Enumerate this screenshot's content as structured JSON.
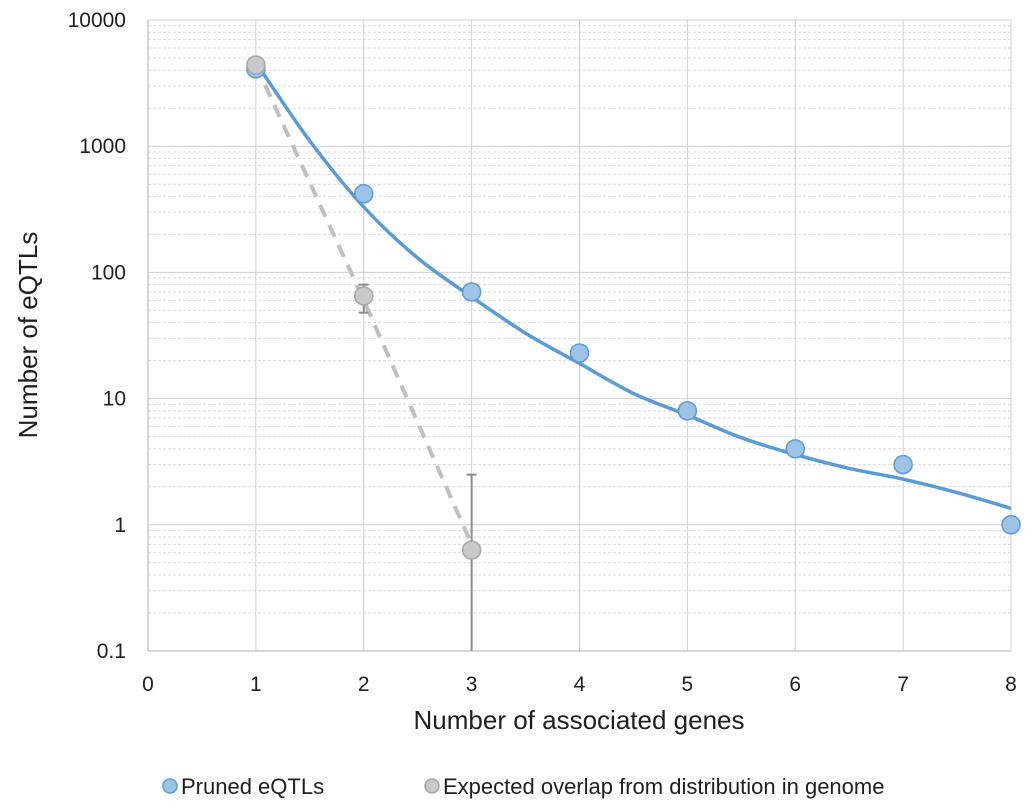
{
  "chart_data": {
    "type": "scatter",
    "xlabel": "Number of associated genes",
    "ylabel": "Number of eQTLs",
    "xlim": [
      0,
      8
    ],
    "ylim": [
      0.1,
      10000
    ],
    "yscale": "log",
    "x_ticks": [
      "0",
      "1",
      "2",
      "3",
      "4",
      "5",
      "6",
      "7",
      "8"
    ],
    "y_ticks": [
      "0.1",
      "1",
      "10",
      "100",
      "1000",
      "10000"
    ],
    "grid": "major and minor horizontal, major vertical",
    "legend_position": "bottom",
    "series": [
      {
        "name": "Pruned eQTLs",
        "color": "#5b9bd5",
        "marker_fill": "#9dc3e6",
        "x": [
          1,
          2,
          3,
          4,
          5,
          6,
          7,
          8
        ],
        "y": [
          4100,
          420,
          70,
          23,
          8,
          4,
          3,
          1
        ],
        "trendline": {
          "style": "solid",
          "color": "#5b9bd5",
          "x": [
            1,
            1.5,
            2,
            2.5,
            3,
            3.5,
            4,
            4.5,
            5,
            5.5,
            6,
            6.5,
            7,
            7.5,
            8
          ],
          "y": [
            4600,
            1100,
            330,
            130,
            64,
            33,
            19,
            11,
            7.4,
            4.9,
            3.6,
            2.8,
            2.3,
            1.8,
            1.35
          ]
        }
      },
      {
        "name": "Expected overlap from distribution in genome",
        "color": "#bfbfbf",
        "marker_fill": "#c9c9c9",
        "x": [
          1,
          2,
          3
        ],
        "y": [
          4400,
          65,
          0.63
        ],
        "error_y_upper": [
          4400,
          80,
          2.5
        ],
        "error_y_lower": [
          4400,
          48,
          0.1
        ],
        "trendline": {
          "style": "dashed",
          "color": "#bfbfbf",
          "x": [
            1,
            2,
            3
          ],
          "y": [
            4400,
            60,
            0.7
          ]
        }
      }
    ]
  }
}
